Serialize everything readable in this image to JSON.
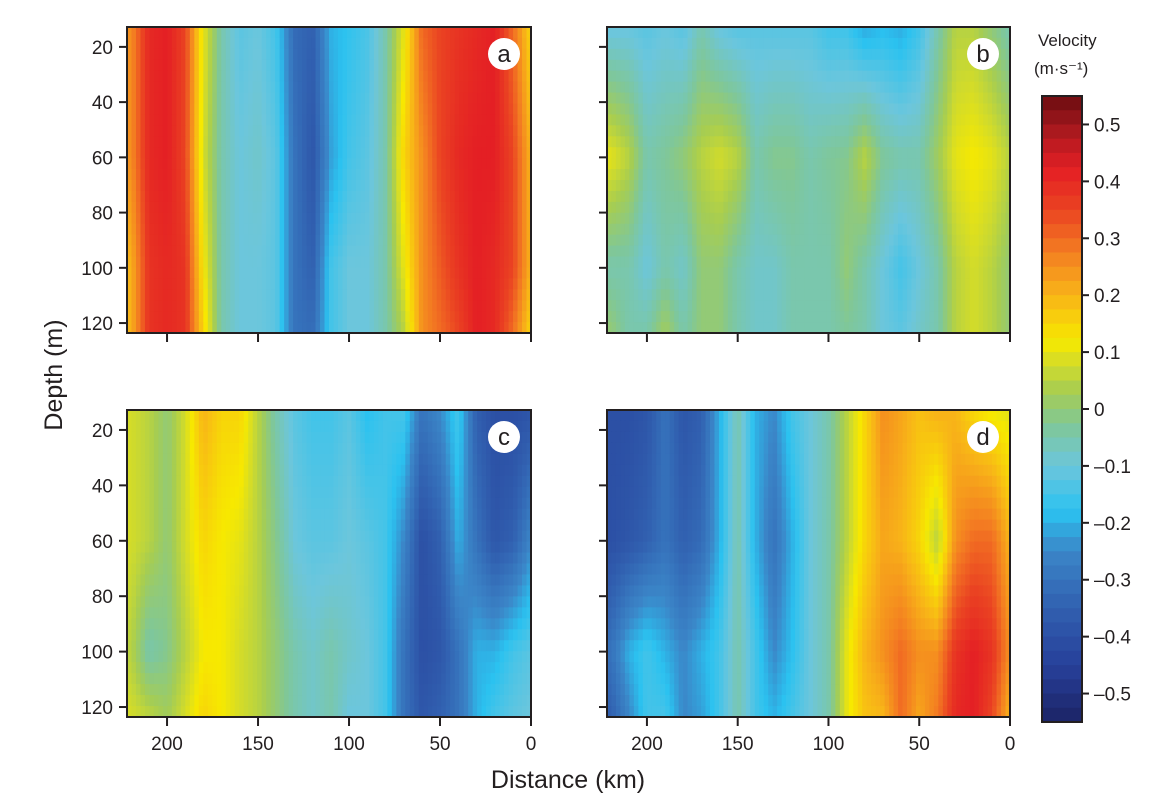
{
  "chart_data": [
    {
      "type": "heatmap",
      "panel_label": "a",
      "x_tick_labels_shown": false,
      "y_tick_labels_shown": true,
      "x_km": [
        220,
        210,
        200,
        190,
        180,
        170,
        160,
        150,
        140,
        130,
        120,
        110,
        100,
        90,
        80,
        70,
        60,
        50,
        40,
        30,
        20,
        10,
        0
      ],
      "depth_m": [
        15,
        60,
        100,
        122
      ],
      "velocity": [
        [
          0.25,
          0.4,
          0.42,
          0.35,
          0.1,
          -0.05,
          -0.12,
          -0.1,
          -0.15,
          -0.32,
          -0.35,
          -0.2,
          -0.17,
          -0.14,
          -0.05,
          0.1,
          0.3,
          0.35,
          0.38,
          0.4,
          0.42,
          0.3,
          0.15
        ],
        [
          0.25,
          0.4,
          0.42,
          0.35,
          0.08,
          -0.05,
          -0.1,
          -0.08,
          -0.12,
          -0.3,
          -0.38,
          -0.22,
          -0.15,
          -0.12,
          -0.05,
          0.15,
          0.25,
          0.35,
          0.4,
          0.42,
          0.42,
          0.35,
          0.2
        ],
        [
          0.2,
          0.38,
          0.4,
          0.38,
          0.12,
          -0.05,
          -0.1,
          -0.1,
          -0.12,
          -0.3,
          -0.35,
          -0.15,
          -0.1,
          -0.1,
          -0.05,
          0.1,
          0.25,
          0.32,
          0.38,
          0.42,
          0.4,
          0.35,
          0.2
        ],
        [
          0.2,
          0.38,
          0.4,
          0.38,
          0.15,
          -0.05,
          -0.1,
          -0.1,
          -0.12,
          -0.3,
          -0.32,
          -0.15,
          -0.1,
          -0.1,
          -0.05,
          0.05,
          0.25,
          0.3,
          0.35,
          0.42,
          0.4,
          0.3,
          0.15
        ]
      ]
    },
    {
      "type": "heatmap",
      "panel_label": "b",
      "x_tick_labels_shown": false,
      "y_tick_labels_shown": false,
      "x_km": [
        220,
        210,
        200,
        190,
        180,
        170,
        160,
        150,
        140,
        130,
        120,
        110,
        100,
        90,
        80,
        70,
        60,
        50,
        40,
        30,
        20,
        10,
        0
      ],
      "depth_m": [
        15,
        60,
        100,
        122
      ],
      "velocity": [
        [
          -0.1,
          -0.1,
          -0.12,
          -0.1,
          -0.12,
          -0.05,
          -0.1,
          -0.12,
          -0.12,
          -0.12,
          -0.12,
          -0.12,
          -0.15,
          -0.15,
          -0.2,
          -0.18,
          -0.2,
          -0.15,
          -0.05,
          0.05,
          0.05,
          0.0,
          -0.05
        ],
        [
          0.1,
          0.05,
          -0.05,
          -0.03,
          0.0,
          0.05,
          0.08,
          0.05,
          -0.05,
          -0.02,
          -0.02,
          -0.05,
          -0.03,
          -0.02,
          0.05,
          -0.03,
          -0.05,
          -0.05,
          0.02,
          0.1,
          0.12,
          0.1,
          0.05
        ],
        [
          -0.05,
          -0.05,
          -0.1,
          -0.05,
          -0.08,
          0.0,
          0.0,
          -0.05,
          -0.08,
          -0.08,
          -0.05,
          -0.05,
          -0.05,
          0.0,
          -0.05,
          -0.1,
          -0.15,
          -0.1,
          -0.05,
          0.05,
          0.08,
          0.05,
          0.0
        ],
        [
          0.0,
          -0.05,
          -0.05,
          0.02,
          -0.05,
          0.0,
          0.0,
          -0.05,
          -0.08,
          -0.08,
          -0.05,
          -0.05,
          -0.05,
          -0.03,
          -0.05,
          -0.1,
          -0.12,
          -0.08,
          -0.05,
          0.05,
          0.08,
          0.05,
          0.0
        ]
      ]
    },
    {
      "type": "heatmap",
      "panel_label": "c",
      "x_tick_labels_shown": true,
      "y_tick_labels_shown": true,
      "x_km": [
        220,
        210,
        200,
        190,
        180,
        170,
        160,
        150,
        140,
        130,
        120,
        110,
        100,
        90,
        80,
        70,
        60,
        50,
        40,
        30,
        20,
        10,
        0
      ],
      "depth_m": [
        15,
        60,
        100,
        122
      ],
      "velocity": [
        [
          0.08,
          0.05,
          0.0,
          0.08,
          0.2,
          0.15,
          0.15,
          0.05,
          -0.05,
          -0.12,
          -0.15,
          -0.15,
          -0.12,
          -0.18,
          -0.15,
          -0.15,
          -0.3,
          -0.25,
          -0.15,
          -0.35,
          -0.4,
          -0.4,
          -0.38
        ],
        [
          0.08,
          0.05,
          0.0,
          0.08,
          0.15,
          0.12,
          0.1,
          0.05,
          -0.02,
          -0.1,
          -0.12,
          -0.12,
          -0.1,
          -0.12,
          -0.15,
          -0.25,
          -0.4,
          -0.35,
          -0.2,
          -0.3,
          -0.38,
          -0.35,
          -0.25
        ],
        [
          0.05,
          -0.05,
          -0.02,
          0.05,
          0.12,
          0.12,
          0.08,
          0.05,
          0.0,
          -0.05,
          -0.08,
          -0.05,
          -0.08,
          -0.1,
          -0.15,
          -0.3,
          -0.4,
          -0.38,
          -0.3,
          -0.2,
          -0.2,
          -0.15,
          -0.12
        ],
        [
          0.08,
          0.05,
          0.02,
          0.08,
          0.15,
          0.12,
          0.08,
          0.05,
          0.0,
          -0.05,
          -0.08,
          -0.05,
          -0.1,
          -0.1,
          -0.15,
          -0.3,
          -0.38,
          -0.35,
          -0.3,
          -0.2,
          -0.15,
          -0.12,
          -0.1
        ]
      ]
    },
    {
      "type": "heatmap",
      "panel_label": "d",
      "x_tick_labels_shown": true,
      "y_tick_labels_shown": false,
      "x_km": [
        220,
        210,
        200,
        190,
        180,
        170,
        160,
        150,
        140,
        130,
        120,
        110,
        100,
        90,
        80,
        70,
        60,
        50,
        40,
        30,
        20,
        10,
        0
      ],
      "depth_m": [
        15,
        60,
        100,
        122
      ],
      "velocity": [
        [
          -0.4,
          -0.4,
          -0.38,
          -0.3,
          -0.38,
          -0.35,
          -0.2,
          -0.05,
          -0.2,
          -0.25,
          -0.15,
          -0.1,
          -0.05,
          0.05,
          0.15,
          0.25,
          0.22,
          0.18,
          0.2,
          0.2,
          0.15,
          0.12,
          0.1
        ],
        [
          -0.4,
          -0.38,
          -0.35,
          -0.3,
          -0.35,
          -0.32,
          -0.2,
          -0.05,
          -0.2,
          -0.3,
          -0.2,
          -0.1,
          -0.05,
          0.05,
          0.15,
          0.22,
          0.2,
          0.15,
          0.05,
          0.25,
          0.3,
          0.3,
          0.2
        ],
        [
          -0.3,
          -0.2,
          -0.15,
          -0.2,
          -0.25,
          -0.2,
          -0.15,
          -0.05,
          -0.15,
          -0.25,
          -0.18,
          -0.1,
          -0.05,
          0.1,
          0.2,
          0.25,
          0.3,
          0.25,
          0.25,
          0.38,
          0.42,
          0.38,
          0.25
        ],
        [
          -0.35,
          -0.25,
          -0.15,
          -0.15,
          -0.25,
          -0.22,
          -0.15,
          -0.05,
          -0.15,
          -0.2,
          -0.15,
          -0.1,
          -0.05,
          0.1,
          0.18,
          0.2,
          0.3,
          0.22,
          0.28,
          0.4,
          0.42,
          0.35,
          0.2
        ]
      ]
    }
  ],
  "axes": {
    "xlabel": "Distance (km)",
    "ylabel": "Depth (m)",
    "xlim": [
      222,
      0
    ],
    "ylim": [
      12.8,
      123.6
    ],
    "x_ticks": [
      200,
      150,
      100,
      50,
      0
    ],
    "y_ticks": [
      20,
      40,
      60,
      80,
      100,
      120
    ]
  },
  "colorbar": {
    "title": "Velocity",
    "unit": "(m·s⁻¹)",
    "range": [
      -0.55,
      0.55
    ],
    "ticks": [
      0.5,
      0.4,
      0.3,
      0.2,
      0.1,
      0,
      -0.1,
      -0.2,
      -0.3,
      -0.4,
      -0.5
    ],
    "tick_labels": [
      "0.5",
      "0.4",
      "0.3",
      "0.2",
      "0.1",
      "0",
      "–0.1",
      "–0.2",
      "–0.3",
      "–0.4",
      "–0.5"
    ],
    "colormap": [
      [
        -0.55,
        "#1c2466"
      ],
      [
        -0.45,
        "#27409a"
      ],
      [
        -0.35,
        "#3160b0"
      ],
      [
        -0.25,
        "#3b86c8"
      ],
      [
        -0.18,
        "#2bc2f0"
      ],
      [
        -0.1,
        "#6cc6dc"
      ],
      [
        -0.03,
        "#7fc79a"
      ],
      [
        0.03,
        "#a6cd52"
      ],
      [
        0.08,
        "#d4dc28"
      ],
      [
        0.12,
        "#f7e900"
      ],
      [
        0.2,
        "#f8b418"
      ],
      [
        0.28,
        "#f37a22"
      ],
      [
        0.35,
        "#ea4322"
      ],
      [
        0.42,
        "#e41f24"
      ],
      [
        0.48,
        "#b21a20"
      ],
      [
        0.55,
        "#6b0d10"
      ]
    ]
  }
}
